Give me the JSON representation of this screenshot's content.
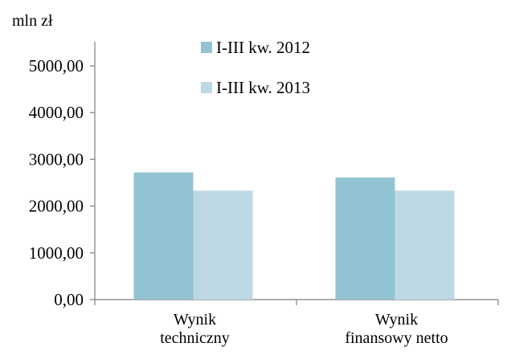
{
  "chart_data": {
    "type": "bar",
    "unit_label": "mln zł",
    "categories": [
      [
        "Wynik",
        "techniczny"
      ],
      [
        "Wynik",
        "finansowy netto"
      ]
    ],
    "series": [
      {
        "name": "I-III kw. 2012",
        "color": "#92c3d3",
        "values": [
          2720,
          2610
        ]
      },
      {
        "name": "I-III kw. 2013",
        "color": "#bcd9e3",
        "values": [
          2330,
          2330
        ]
      }
    ],
    "y_ticks": [
      "0,00",
      "1000,00",
      "2000,00",
      "3000,00",
      "4000,00",
      "5000,00"
    ],
    "ylim": [
      0,
      5000
    ],
    "grid": false,
    "legend_position": "top-center"
  }
}
